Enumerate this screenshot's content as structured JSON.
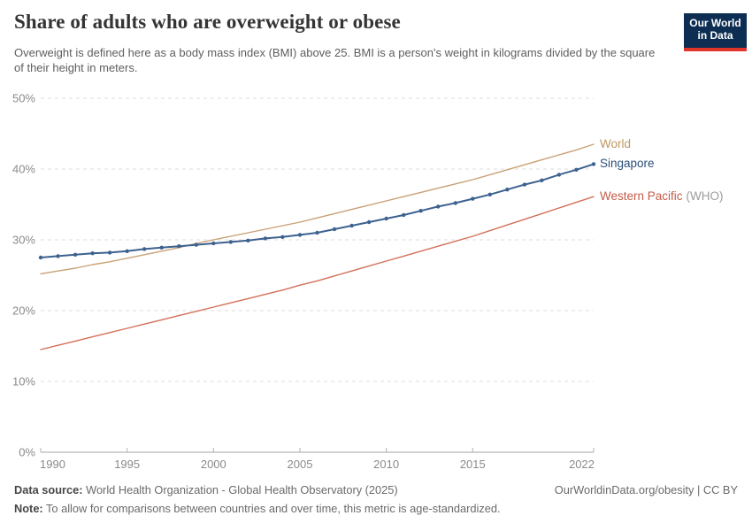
{
  "header": {
    "title": "Share of adults who are overweight or obese",
    "subtitle": "Overweight is defined here as a body mass index (BMI) above 25. BMI is a person's weight in kilograms divided by the square of their height in meters.",
    "logo_line1": "Our World",
    "logo_line2": "in Data",
    "logo_colors": {
      "background": "#0d2e52",
      "stripe": "#e1352b"
    }
  },
  "chart_data": {
    "type": "line",
    "title": "Share of adults who are overweight or obese",
    "xlabel": "",
    "ylabel": "",
    "grid": "horizontal-dashed",
    "legend_position": "right-of-line-ends",
    "ylim": [
      0,
      50
    ],
    "x": [
      1990,
      1991,
      1992,
      1993,
      1994,
      1995,
      1996,
      1997,
      1998,
      1999,
      2000,
      2001,
      2002,
      2003,
      2004,
      2005,
      2006,
      2007,
      2008,
      2009,
      2010,
      2011,
      2012,
      2013,
      2014,
      2015,
      2016,
      2017,
      2018,
      2019,
      2020,
      2021,
      2022
    ],
    "xticks": [
      1990,
      1995,
      2000,
      2005,
      2010,
      2015,
      2022
    ],
    "yticks": [
      {
        "value": 0,
        "label": "0%"
      },
      {
        "value": 10,
        "label": "10%"
      },
      {
        "value": 20,
        "label": "20%"
      },
      {
        "value": 30,
        "label": "30%"
      },
      {
        "value": 40,
        "label": "40%"
      },
      {
        "value": 50,
        "label": "50%"
      }
    ],
    "series": [
      {
        "id": "world",
        "name": "World",
        "name_suffix": "",
        "color": "#c8a175",
        "label_color": "#be9763",
        "markers": false,
        "values": [
          25.2,
          25.6,
          26.0,
          26.5,
          26.9,
          27.4,
          27.9,
          28.4,
          28.9,
          29.5,
          30.0,
          30.5,
          31.0,
          31.5,
          32.0,
          32.5,
          33.1,
          33.7,
          34.3,
          34.9,
          35.5,
          36.1,
          36.7,
          37.3,
          37.9,
          38.5,
          39.2,
          39.9,
          40.6,
          41.3,
          42.0,
          42.7,
          43.5
        ]
      },
      {
        "id": "singapore",
        "name": "Singapore",
        "name_suffix": "",
        "color": "#3d618f",
        "label_color": "#2d4f79",
        "markers": true,
        "values": [
          27.5,
          27.7,
          27.9,
          28.1,
          28.2,
          28.4,
          28.7,
          28.9,
          29.1,
          29.3,
          29.5,
          29.7,
          29.9,
          30.2,
          30.4,
          30.7,
          31.0,
          31.5,
          32.0,
          32.5,
          33.0,
          33.5,
          34.1,
          34.7,
          35.2,
          35.8,
          36.4,
          37.1,
          37.8,
          38.4,
          39.2,
          39.9,
          40.7
        ]
      },
      {
        "id": "western-pacific",
        "name": "Western Pacific",
        "name_suffix": "(WHO)",
        "color": "#d3705a",
        "label_color": "#c35c49",
        "markers": false,
        "values": [
          14.5,
          15.1,
          15.7,
          16.3,
          16.9,
          17.5,
          18.1,
          18.7,
          19.3,
          19.9,
          20.5,
          21.1,
          21.7,
          22.3,
          22.9,
          23.6,
          24.2,
          24.9,
          25.6,
          26.3,
          27.0,
          27.7,
          28.4,
          29.1,
          29.8,
          30.5,
          31.3,
          32.1,
          32.9,
          33.7,
          34.5,
          35.3,
          36.1
        ]
      }
    ]
  },
  "footer": {
    "data_source_label": "Data source:",
    "data_source": "World Health Organization - Global Health Observatory (2025)",
    "link": "OurWorldinData.org/obesity | CC BY",
    "note_label": "Note:",
    "note": "To allow for comparisons between countries and over time, this metric is age-standardized."
  }
}
